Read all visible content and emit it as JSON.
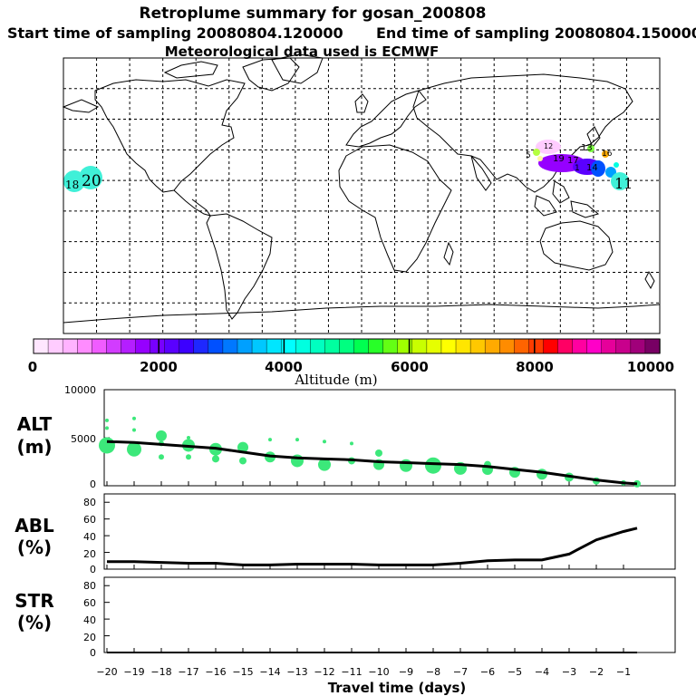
{
  "title": {
    "line1": "Retroplume summary for gosan_200808",
    "line2_start": "Start time of sampling 20080804.120000",
    "line2_end": "End time of sampling 20080804.150000",
    "line3": "Meteorological data used is ECMWF"
  },
  "colorbar": {
    "label": "Altitude (m)",
    "ticks": [
      "0",
      "2000",
      "4000",
      "6000",
      "8000",
      "10000"
    ],
    "colors": [
      "#ffe6ff",
      "#ffccff",
      "#ffb3ff",
      "#ff8cff",
      "#f05cff",
      "#d23cff",
      "#b41eff",
      "#9600ff",
      "#7800ff",
      "#5a00ff",
      "#3c00ff",
      "#1e28ff",
      "#0050ff",
      "#0078ff",
      "#00a0ff",
      "#00c8ff",
      "#00e6ff",
      "#00ffff",
      "#00ffe0",
      "#00ffc0",
      "#00ffa0",
      "#00ff80",
      "#00ff50",
      "#28ff28",
      "#64ff14",
      "#a0ff00",
      "#c8ff00",
      "#e6ff00",
      "#ffff00",
      "#ffe600",
      "#ffc800",
      "#ffaa00",
      "#ff8c00",
      "#ff6400",
      "#ff3c00",
      "#ff0000",
      "#ff0064",
      "#ff00a0",
      "#ff00c8",
      "#e6009a",
      "#c8008c",
      "#a0007a",
      "#780064"
    ]
  },
  "map_labels": {
    "west_cluster": "20",
    "west_small": "18",
    "east_numbers": [
      "19",
      "17",
      "13",
      "16",
      "14",
      "11",
      "5",
      "12",
      "1"
    ]
  },
  "panels": {
    "alt": {
      "label_line1": "ALT",
      "label_line2": "(m)",
      "yticks": [
        "10000",
        "5000",
        "0"
      ]
    },
    "abl": {
      "label_line1": "ABL",
      "label_line2": "(%)",
      "yticks": [
        "80",
        "60",
        "40",
        "20",
        "0"
      ]
    },
    "str": {
      "label_line1": "STR",
      "label_line2": "(%)",
      "yticks": [
        "80",
        "60",
        "40",
        "20",
        "0"
      ]
    }
  },
  "xaxis": {
    "label": "Travel time (days)",
    "ticks": [
      "−20",
      "−19",
      "−18",
      "−17",
      "−16",
      "−15",
      "−14",
      "−13",
      "−12",
      "−11",
      "−10",
      "−9",
      "−8",
      "−7",
      "−6",
      "−5",
      "−4",
      "−3",
      "−2",
      "−1"
    ]
  },
  "chart_data": [
    {
      "type": "line",
      "title": "ALT (m)",
      "xlabel": "Travel time (days)",
      "ylabel": "ALT (m)",
      "xlim": [
        -20.1,
        0.9
      ],
      "ylim": [
        0,
        10000
      ],
      "x": [
        -20,
        -19,
        -18,
        -17,
        -16,
        -15,
        -14,
        -13,
        -12,
        -11,
        -10,
        -9,
        -8,
        -7,
        -6,
        -5,
        -4,
        -3,
        -2,
        -1,
        -0.5
      ],
      "series": [
        {
          "name": "mean altitude",
          "values": [
            4600,
            4500,
            4300,
            4100,
            3900,
            3500,
            3100,
            2900,
            2800,
            2700,
            2500,
            2400,
            2300,
            2200,
            2000,
            1700,
            1400,
            1000,
            600,
            300,
            200
          ]
        }
      ],
      "clusters": {
        "x": [
          -20,
          -20,
          -20,
          -19,
          -19,
          -19,
          -18,
          -18,
          -18,
          -17,
          -17,
          -17,
          -16,
          -16,
          -15,
          -15,
          -14,
          -14,
          -13,
          -13,
          -12,
          -12,
          -11,
          -11,
          -10,
          -10,
          -9,
          -8,
          -8,
          -7,
          -6,
          -6,
          -5,
          -4,
          -3,
          -2,
          -1,
          -0.5
        ],
        "y": [
          4200,
          6000,
          6800,
          3800,
          5800,
          7000,
          5200,
          3000,
          4400,
          4200,
          3000,
          5000,
          3800,
          2800,
          4000,
          2600,
          3000,
          4800,
          2600,
          4800,
          2200,
          4600,
          2600,
          4400,
          2200,
          3400,
          2100,
          2100,
          2300,
          1800,
          1700,
          2200,
          1400,
          1200,
          900,
          500,
          300,
          200
        ],
        "size": [
          9,
          2,
          2,
          8,
          2,
          2,
          6,
          3,
          3,
          7,
          3,
          2,
          7,
          4,
          6,
          4,
          6,
          2,
          7,
          2,
          7,
          2,
          4,
          2,
          6,
          4,
          7,
          9,
          6,
          7,
          6,
          4,
          6,
          6,
          5,
          4,
          3,
          4
        ]
      }
    },
    {
      "type": "line",
      "title": "ABL (%)",
      "ylabel": "ABL (%)",
      "xlim": [
        -20.1,
        0.9
      ],
      "ylim": [
        0,
        90
      ],
      "x": [
        -20,
        -19,
        -18,
        -17,
        -16,
        -15,
        -14,
        -13,
        -12,
        -11,
        -10,
        -9,
        -8,
        -7,
        -6,
        -5,
        -4,
        -3,
        -2,
        -1,
        -0.5
      ],
      "series": [
        {
          "name": "fraction in boundary layer",
          "values": [
            9,
            9,
            8,
            7,
            7,
            5,
            5,
            6,
            6,
            6,
            5,
            5,
            5,
            7,
            10,
            11,
            11,
            18,
            35,
            45,
            49
          ]
        }
      ]
    },
    {
      "type": "line",
      "title": "STR (%)",
      "ylabel": "STR (%)",
      "xlim": [
        -20.1,
        0.9
      ],
      "ylim": [
        0,
        90
      ],
      "x": [
        -20,
        -0.5
      ],
      "series": [
        {
          "name": "fraction in stratosphere",
          "values": [
            0,
            0
          ]
        }
      ]
    }
  ]
}
